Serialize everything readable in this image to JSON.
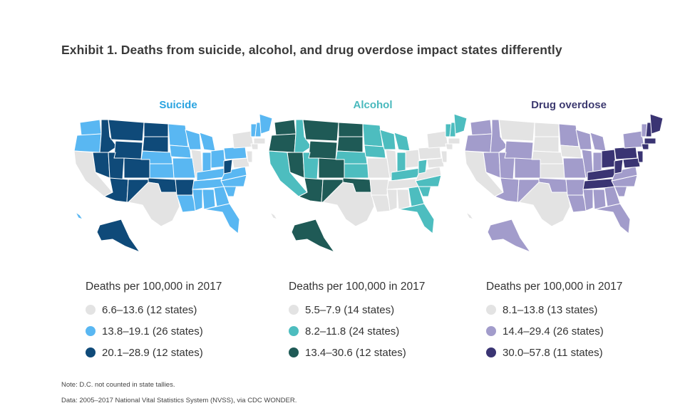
{
  "title": "Exhibit 1. Deaths from suicide, alcohol, and drug overdose impact states differently",
  "legend_heading": "Deaths per 100,000 in 2017",
  "panels": [
    {
      "name": "Suicide",
      "title_color": "#29a3e0",
      "colors": {
        "low": "#e3e3e3",
        "mid": "#59b7f2",
        "high": "#0f4a79"
      },
      "legend": [
        {
          "label": "6.6–13.6 (12 states)",
          "level": "low"
        },
        {
          "label": "13.8–19.1 (26 states)",
          "level": "mid"
        },
        {
          "label": "20.1–28.9 (12 states)",
          "level": "high"
        }
      ]
    },
    {
      "name": "Alcohol",
      "title_color": "#49b9bd",
      "colors": {
        "low": "#e3e3e3",
        "mid": "#4dbdbf",
        "high": "#1f5a56"
      },
      "legend": [
        {
          "label": "5.5–7.9 (14 states)",
          "level": "low"
        },
        {
          "label": "8.2–11.8 (24 states)",
          "level": "mid"
        },
        {
          "label": "13.4–30.6 (12 states)",
          "level": "high"
        }
      ]
    },
    {
      "name": "Drug overdose",
      "title_color": "#3d3a70",
      "colors": {
        "low": "#e3e3e3",
        "mid": "#a29ccb",
        "high": "#3a3473"
      },
      "legend": [
        {
          "label": "8.1–13.8 (13 states)",
          "level": "low"
        },
        {
          "label": "14.4–29.4 (26 states)",
          "level": "mid"
        },
        {
          "label": "30.0–57.8 (11 states)",
          "level": "high"
        }
      ]
    }
  ],
  "note": "Note: D.C. not counted in state tallies.",
  "source": "Data: 2005–2017 National Vital Statistics System (NVSS), via CDC WONDER."
}
